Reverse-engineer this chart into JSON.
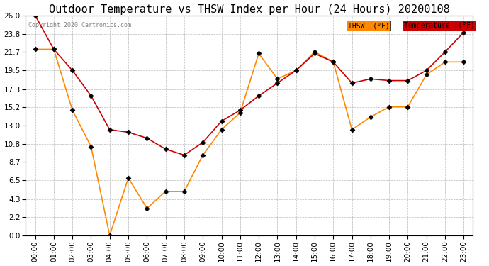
{
  "title": "Outdoor Temperature vs THSW Index per Hour (24 Hours) 20200108",
  "copyright": "Copyright 2020 Cartronics.com",
  "legend_thsw": "THSW  (°F)",
  "legend_temp": "Temperature  (°F)",
  "hours": [
    "00:00",
    "01:00",
    "02:00",
    "03:00",
    "04:00",
    "05:00",
    "06:00",
    "07:00",
    "08:00",
    "09:00",
    "10:00",
    "11:00",
    "12:00",
    "13:00",
    "14:00",
    "15:00",
    "16:00",
    "17:00",
    "18:00",
    "19:00",
    "20:00",
    "21:00",
    "22:00",
    "23:00"
  ],
  "temperature": [
    26.0,
    22.0,
    19.5,
    16.5,
    12.5,
    12.2,
    11.5,
    10.2,
    9.5,
    11.0,
    13.5,
    14.8,
    16.5,
    18.0,
    19.5,
    21.5,
    20.5,
    18.0,
    18.5,
    18.3,
    18.3,
    19.5,
    21.7,
    24.0
  ],
  "thsw": [
    22.0,
    22.0,
    14.8,
    10.5,
    0.0,
    6.8,
    3.2,
    5.2,
    5.2,
    9.5,
    12.5,
    14.5,
    21.5,
    18.5,
    19.5,
    21.7,
    20.5,
    12.5,
    14.0,
    15.2,
    15.2,
    19.0,
    20.5,
    20.5
  ],
  "ylim_min": 0.0,
  "ylim_max": 26.0,
  "yticks": [
    0.0,
    2.2,
    4.3,
    6.5,
    8.7,
    10.8,
    13.0,
    15.2,
    17.3,
    19.5,
    21.7,
    23.8,
    26.0
  ],
  "temp_color": "#cc0000",
  "thsw_color": "#ff8800",
  "bg_color": "#ffffff",
  "plot_bg_color": "#ffffff",
  "grid_color": "#bbbbbb",
  "title_fontsize": 11,
  "tick_fontsize": 7.5,
  "copyright_fontsize": 6,
  "marker": "D",
  "marker_size": 3.5
}
